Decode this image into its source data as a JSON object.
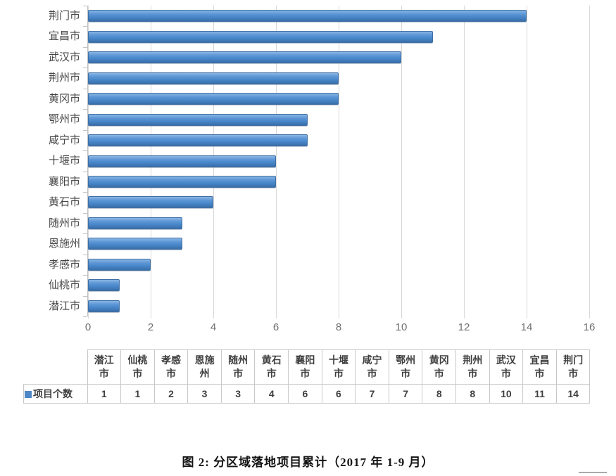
{
  "chart_data": {
    "type": "bar",
    "orientation": "horizontal",
    "title": "",
    "categories": [
      "潜江市",
      "仙桃市",
      "孝感市",
      "恩施州",
      "随州市",
      "黄石市",
      "襄阳市",
      "十堰市",
      "咸宁市",
      "鄂州市",
      "黄冈市",
      "荆州市",
      "武汉市",
      "宜昌市",
      "荆门市"
    ],
    "series": [
      {
        "name": "项目个数",
        "values": [
          1,
          1,
          2,
          3,
          3,
          4,
          6,
          6,
          7,
          7,
          8,
          8,
          10,
          11,
          14
        ]
      }
    ],
    "bar_order_top_to_bottom": [
      "荆门市",
      "宜昌市",
      "武汉市",
      "荆州市",
      "黄冈市",
      "鄂州市",
      "咸宁市",
      "十堰市",
      "襄阳市",
      "黄石市",
      "随州市",
      "恩施州",
      "孝感市",
      "仙桃市",
      "潜江市"
    ],
    "xlim": [
      0,
      16
    ],
    "x_ticks": [
      0,
      2,
      4,
      6,
      8,
      10,
      12,
      14,
      16
    ],
    "grid": "vertical-gridlines-on",
    "legend_position": "data-table-row-label",
    "data_table_shown": true,
    "colors": {
      "bar_fill": "#4e87c6",
      "bar_fill_light": "#8ab6e3",
      "bar_fill_dark": "#3a6ea8",
      "bar_border": "#3f6fa3",
      "gridline": "#d8d8d8",
      "axis": "#c2c2c2",
      "x_tick_label": "#6f6f6f",
      "category_label": "#454545",
      "table_border": "#c9c9c9",
      "table_text": "#3f3f3f",
      "legend_key": "#4e87c6"
    }
  },
  "caption": {
    "text": "图 2: 分区域落地项目累计（2017 年 1-9 月）"
  }
}
